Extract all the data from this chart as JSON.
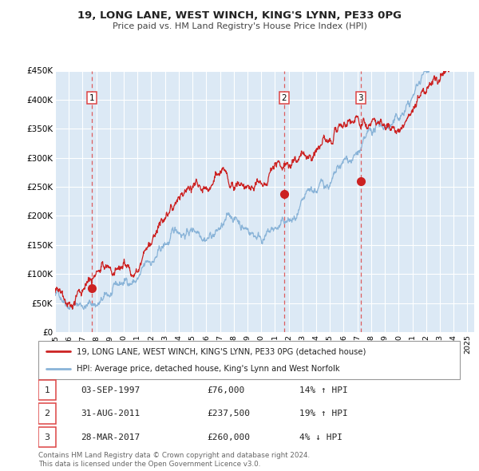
{
  "title": "19, LONG LANE, WEST WINCH, KING'S LYNN, PE33 0PG",
  "subtitle": "Price paid vs. HM Land Registry's House Price Index (HPI)",
  "bg_color": "#dce9f5",
  "hpi_color": "#8ab4d8",
  "price_color": "#cc2222",
  "vline_color": "#dd4444",
  "marker_color": "#cc2222",
  "sales": [
    {
      "date_num": 1997.67,
      "price": 76000,
      "label": "1",
      "pct": "14%",
      "dir": "↑",
      "date_str": "03-SEP-1997",
      "price_str": "£76,000"
    },
    {
      "date_num": 2011.66,
      "price": 237500,
      "label": "2",
      "pct": "19%",
      "dir": "↑",
      "date_str": "31-AUG-2011",
      "price_str": "£237,500"
    },
    {
      "date_num": 2017.23,
      "price": 260000,
      "label": "3",
      "pct": "4%",
      "dir": "↓",
      "date_str": "28-MAR-2017",
      "price_str": "£260,000"
    }
  ],
  "legend_line1": "19, LONG LANE, WEST WINCH, KING'S LYNN, PE33 0PG (detached house)",
  "legend_line2": "HPI: Average price, detached house, King's Lynn and West Norfolk",
  "footnote": "Contains HM Land Registry data © Crown copyright and database right 2024.\nThis data is licensed under the Open Government Licence v3.0.",
  "ylim": [
    0,
    450000
  ],
  "xlim": [
    1995.0,
    2025.5
  ],
  "yticks": [
    0,
    50000,
    100000,
    150000,
    200000,
    250000,
    300000,
    350000,
    400000,
    450000
  ],
  "ytick_labels": [
    "£0",
    "£50K",
    "£100K",
    "£150K",
    "£200K",
    "£250K",
    "£300K",
    "£350K",
    "£400K",
    "£450K"
  ]
}
